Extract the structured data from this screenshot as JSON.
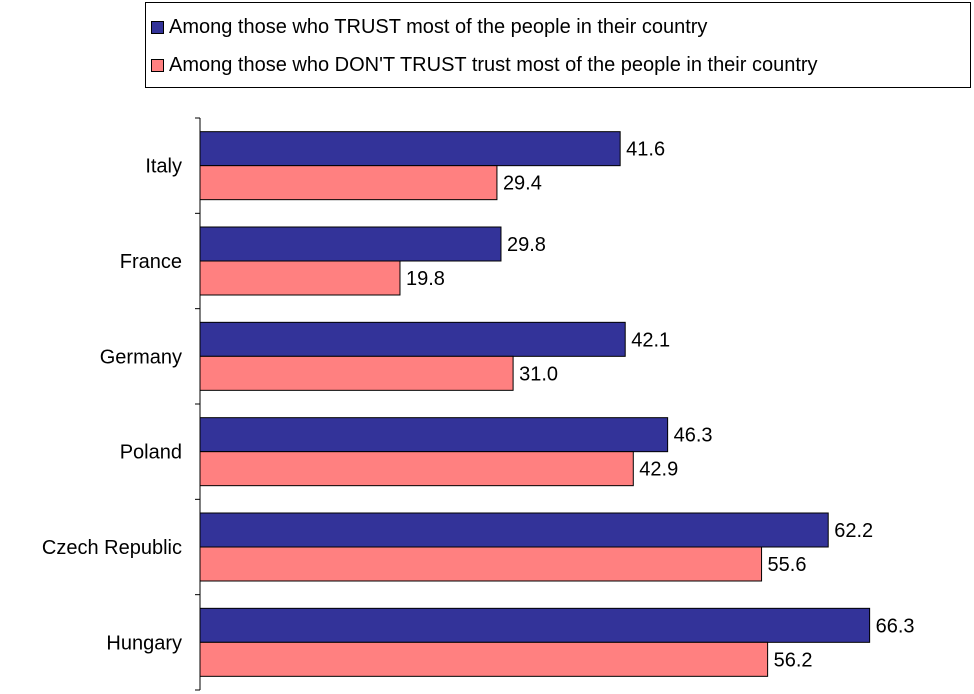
{
  "chart_data": {
    "type": "bar",
    "orientation": "horizontal",
    "categories": [
      "Italy",
      "France",
      "Germany",
      "Poland",
      "Czech Republic",
      "Hungary"
    ],
    "series": [
      {
        "name": "Among those who TRUST most of the people in their country",
        "color": "#333399",
        "values": [
          41.6,
          29.8,
          42.1,
          46.3,
          62.2,
          66.3
        ]
      },
      {
        "name": "Among those who DON'T TRUST trust most of the people in their country",
        "color": "#ff8080",
        "values": [
          29.4,
          19.8,
          31.0,
          42.9,
          55.6,
          56.2
        ]
      }
    ],
    "xlim": [
      0,
      70
    ],
    "grid": false,
    "legend_position": "top"
  }
}
